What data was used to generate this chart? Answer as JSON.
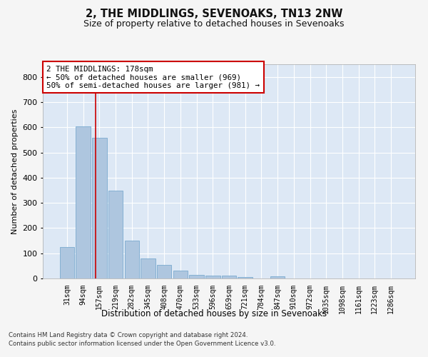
{
  "title": "2, THE MIDDLINGS, SEVENOAKS, TN13 2NW",
  "subtitle": "Size of property relative to detached houses in Sevenoaks",
  "xlabel": "Distribution of detached houses by size in Sevenoaks",
  "ylabel": "Number of detached properties",
  "categories": [
    "31sqm",
    "94sqm",
    "157sqm",
    "219sqm",
    "282sqm",
    "345sqm",
    "408sqm",
    "470sqm",
    "533sqm",
    "596sqm",
    "659sqm",
    "721sqm",
    "784sqm",
    "847sqm",
    "910sqm",
    "972sqm",
    "1035sqm",
    "1098sqm",
    "1161sqm",
    "1223sqm",
    "1286sqm"
  ],
  "values": [
    125,
    603,
    558,
    348,
    150,
    78,
    53,
    30,
    14,
    12,
    12,
    6,
    0,
    8,
    0,
    0,
    0,
    0,
    0,
    0,
    0
  ],
  "bar_color": "#aec6df",
  "bar_edgecolor": "#7aaacf",
  "background_color": "#dde8f5",
  "grid_color": "#ffffff",
  "annotation_text": "2 THE MIDDLINGS: 178sqm\n← 50% of detached houses are smaller (969)\n50% of semi-detached houses are larger (981) →",
  "vline_x": 1.78,
  "annotation_box_color": "#cc0000",
  "footer1": "Contains HM Land Registry data © Crown copyright and database right 2024.",
  "footer2": "Contains public sector information licensed under the Open Government Licence v3.0.",
  "ylim": [
    0,
    850
  ],
  "yticks": [
    0,
    100,
    200,
    300,
    400,
    500,
    600,
    700,
    800
  ]
}
